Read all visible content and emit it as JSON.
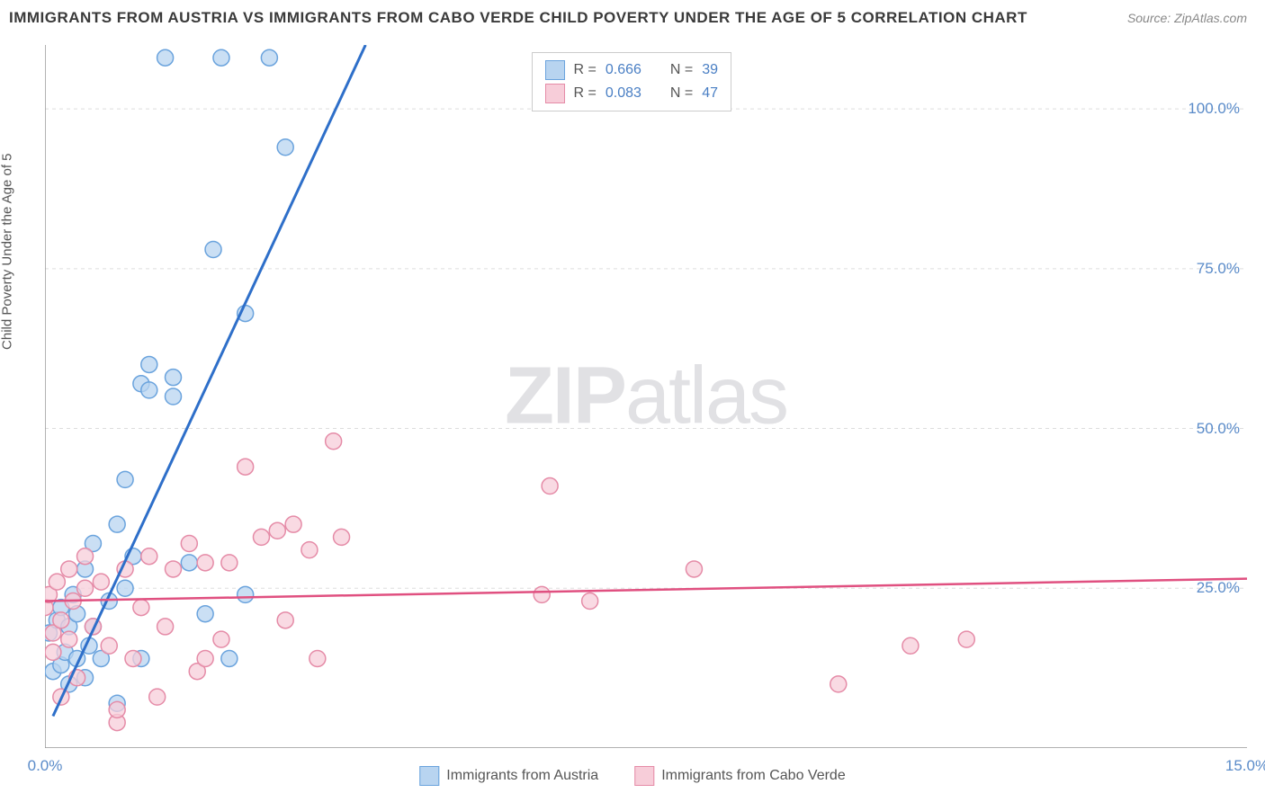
{
  "title": "IMMIGRANTS FROM AUSTRIA VS IMMIGRANTS FROM CABO VERDE CHILD POVERTY UNDER THE AGE OF 5 CORRELATION CHART",
  "source": "Source: ZipAtlas.com",
  "y_axis_label": "Child Poverty Under the Age of 5",
  "watermark": "ZIPatlas",
  "chart": {
    "type": "scatter",
    "background_color": "#ffffff",
    "grid_color": "#dddddd",
    "axis_color": "#999999",
    "xlim": [
      0,
      15
    ],
    "ylim": [
      0,
      110
    ],
    "x_ticks": [
      0.0,
      15.0
    ],
    "x_tick_labels": [
      "0.0%",
      "15.0%"
    ],
    "y_ticks": [
      25.0,
      50.0,
      75.0,
      100.0
    ],
    "y_tick_labels": [
      "25.0%",
      "50.0%",
      "75.0%",
      "100.0%"
    ],
    "x_minor_positions": [
      1.5,
      3.0,
      4.5,
      6.0,
      7.5,
      9.0,
      10.5,
      12.0,
      13.5
    ],
    "y_minor_positions": [
      12.5,
      37.5,
      62.5,
      87.5
    ],
    "series": [
      {
        "name": "Immigrants from Austria",
        "color_fill": "#b8d4f0",
        "color_stroke": "#6aa3dd",
        "marker_radius": 9,
        "marker_opacity": 0.75,
        "R": "0.666",
        "N": "39",
        "trend_line": {
          "x1": 0.1,
          "y1": 5,
          "x2": 4.0,
          "y2": 110,
          "color": "#2e6fc9",
          "width": 3
        },
        "points": [
          [
            0.05,
            18
          ],
          [
            0.1,
            12
          ],
          [
            0.15,
            20
          ],
          [
            0.2,
            13
          ],
          [
            0.2,
            22
          ],
          [
            0.25,
            15
          ],
          [
            0.3,
            10
          ],
          [
            0.3,
            19
          ],
          [
            0.35,
            24
          ],
          [
            0.4,
            14
          ],
          [
            0.4,
            21
          ],
          [
            0.5,
            11
          ],
          [
            0.5,
            28
          ],
          [
            0.55,
            16
          ],
          [
            0.6,
            19
          ],
          [
            0.6,
            32
          ],
          [
            0.7,
            14
          ],
          [
            0.8,
            23
          ],
          [
            0.9,
            7
          ],
          [
            0.9,
            35
          ],
          [
            1.0,
            42
          ],
          [
            1.0,
            25
          ],
          [
            1.1,
            30
          ],
          [
            1.2,
            14
          ],
          [
            1.2,
            57
          ],
          [
            1.3,
            56
          ],
          [
            1.3,
            60
          ],
          [
            1.5,
            108
          ],
          [
            1.6,
            55
          ],
          [
            1.6,
            58
          ],
          [
            1.8,
            29
          ],
          [
            2.0,
            21
          ],
          [
            2.1,
            78
          ],
          [
            2.2,
            108
          ],
          [
            2.3,
            14
          ],
          [
            2.5,
            68
          ],
          [
            2.5,
            24
          ],
          [
            2.8,
            108
          ],
          [
            3.0,
            94
          ]
        ]
      },
      {
        "name": "Immigrants from Cabo Verde",
        "color_fill": "#f7cdd9",
        "color_stroke": "#e58ba7",
        "marker_radius": 9,
        "marker_opacity": 0.75,
        "R": "0.083",
        "N": "47",
        "trend_line": {
          "x1": 0,
          "y1": 23,
          "x2": 15,
          "y2": 26.5,
          "color": "#e05080",
          "width": 2.5
        },
        "points": [
          [
            0.0,
            22
          ],
          [
            0.05,
            24
          ],
          [
            0.1,
            18
          ],
          [
            0.15,
            26
          ],
          [
            0.1,
            15
          ],
          [
            0.2,
            20
          ],
          [
            0.2,
            8
          ],
          [
            0.3,
            28
          ],
          [
            0.3,
            17
          ],
          [
            0.35,
            23
          ],
          [
            0.4,
            11
          ],
          [
            0.5,
            25
          ],
          [
            0.5,
            30
          ],
          [
            0.6,
            19
          ],
          [
            0.7,
            26
          ],
          [
            0.8,
            16
          ],
          [
            0.9,
            4
          ],
          [
            0.9,
            6
          ],
          [
            1.0,
            28
          ],
          [
            1.1,
            14
          ],
          [
            1.2,
            22
          ],
          [
            1.3,
            30
          ],
          [
            1.4,
            8
          ],
          [
            1.5,
            19
          ],
          [
            1.6,
            28
          ],
          [
            1.8,
            32
          ],
          [
            1.9,
            12
          ],
          [
            2.0,
            29
          ],
          [
            2.0,
            14
          ],
          [
            2.2,
            17
          ],
          [
            2.3,
            29
          ],
          [
            2.5,
            44
          ],
          [
            2.7,
            33
          ],
          [
            2.9,
            34
          ],
          [
            3.0,
            20
          ],
          [
            3.1,
            35
          ],
          [
            3.3,
            31
          ],
          [
            3.4,
            14
          ],
          [
            3.6,
            48
          ],
          [
            3.7,
            33
          ],
          [
            6.2,
            24
          ],
          [
            6.3,
            41
          ],
          [
            6.8,
            23
          ],
          [
            8.1,
            28
          ],
          [
            9.9,
            10
          ],
          [
            10.8,
            16
          ],
          [
            11.5,
            17
          ]
        ]
      }
    ]
  },
  "legend_stats": {
    "r_label": "R =",
    "n_label": "N ="
  },
  "bottom_legend": {
    "series1_label": "Immigrants from Austria",
    "series2_label": "Immigrants from Cabo Verde"
  }
}
